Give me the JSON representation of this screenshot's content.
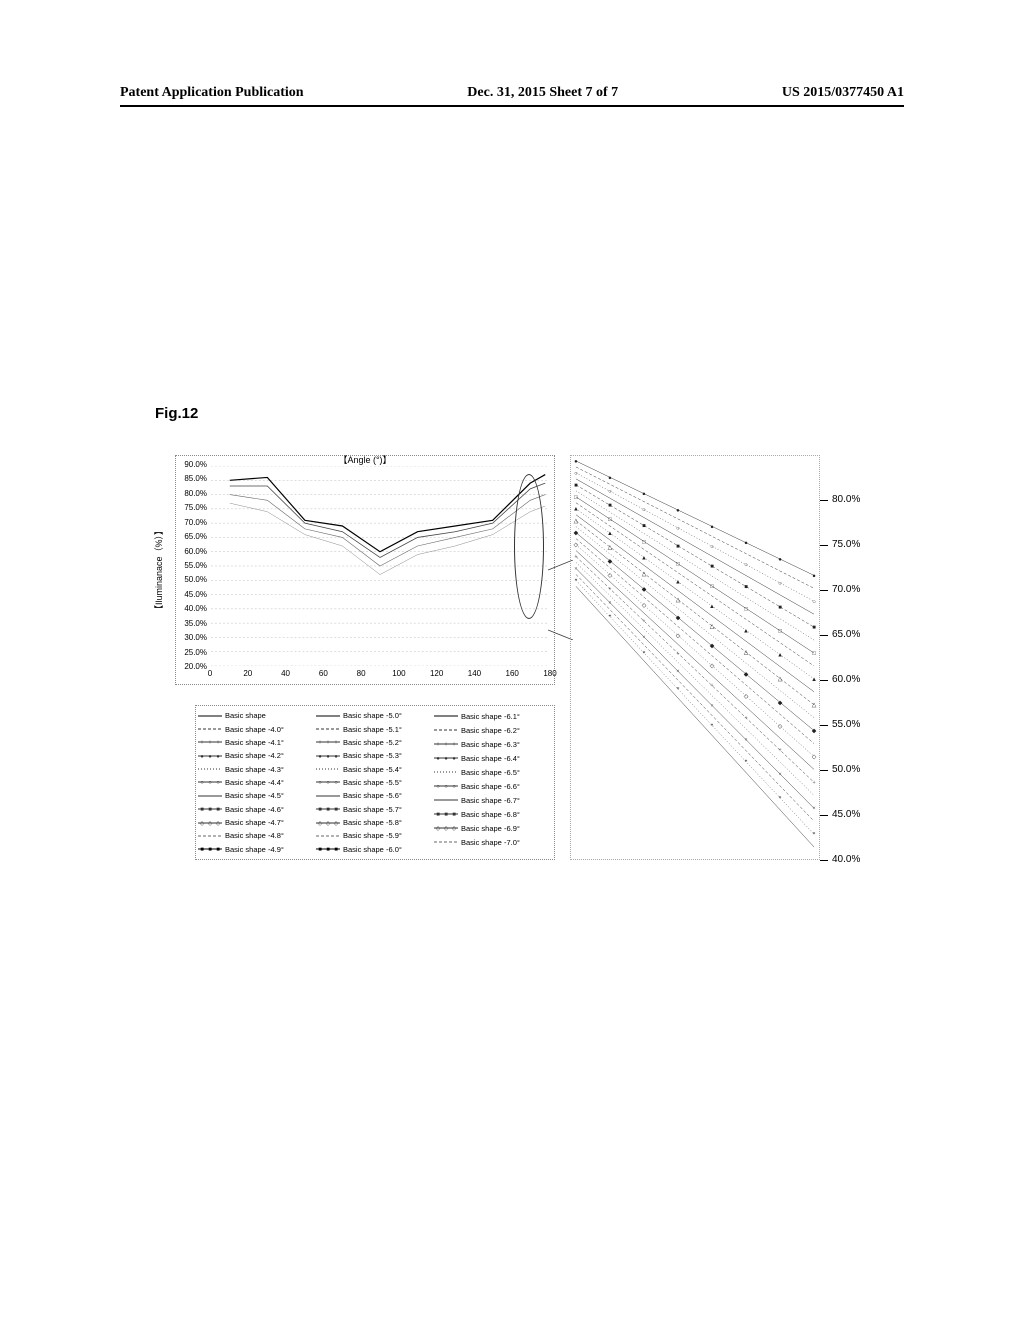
{
  "header": {
    "left": "Patent Application Publication",
    "center": "Dec. 31, 2015  Sheet 7 of 7",
    "right": "US 2015/0377450 A1"
  },
  "figure_label": "Fig.12",
  "chart": {
    "type": "line",
    "title": "【Angle (°)】",
    "ylabel": "【Iluminanace（%）】",
    "xlim": [
      0,
      180
    ],
    "ylim": [
      20,
      90
    ],
    "xtick_step": 20,
    "xticks": [
      0,
      20,
      40,
      60,
      80,
      100,
      120,
      140,
      160,
      180
    ],
    "yticks": [
      "20.0%",
      "25.0%",
      "30.0%",
      "35.0%",
      "40.0%",
      "45.0%",
      "50.0%",
      "55.0%",
      "60.0%",
      "65.0%",
      "70.0%",
      "75.0%",
      "80.0%",
      "85.0%",
      "90.0%"
    ],
    "ytick_values": [
      20,
      25,
      30,
      35,
      40,
      45,
      50,
      55,
      60,
      65,
      70,
      75,
      80,
      85,
      90
    ],
    "grid_color": "#bbbbbb",
    "background_color": "#ffffff",
    "curves": [
      {
        "x": [
          10,
          30,
          50,
          70,
          90,
          110,
          130,
          150,
          170,
          178
        ],
        "y": [
          85,
          86,
          71,
          69,
          60,
          67,
          69,
          71,
          84,
          87
        ],
        "color": "#000",
        "width": 1.2
      },
      {
        "x": [
          10,
          30,
          50,
          70,
          90,
          110,
          130,
          150,
          170,
          178
        ],
        "y": [
          83,
          83,
          70,
          67,
          58,
          65,
          67,
          70,
          82,
          84
        ],
        "color": "#444",
        "width": 0.8
      },
      {
        "x": [
          10,
          30,
          50,
          70,
          90,
          110,
          130,
          150,
          170,
          178
        ],
        "y": [
          80,
          78,
          68,
          65,
          55,
          62,
          65,
          68,
          78,
          80
        ],
        "color": "#666",
        "width": 0.6
      },
      {
        "x": [
          10,
          30,
          50,
          70,
          90,
          110,
          130,
          150,
          170,
          178
        ],
        "y": [
          77,
          74,
          66,
          62,
          52,
          59,
          62,
          66,
          74,
          76
        ],
        "color": "#888",
        "width": 0.5
      }
    ]
  },
  "side_chart": {
    "type": "line",
    "yticks": [
      "40.0%",
      "45.0%",
      "50.0%",
      "55.0%",
      "60.0%",
      "65.0%",
      "70.0%",
      "75.0%",
      "80.0%"
    ],
    "ytick_values": [
      40,
      45,
      50,
      55,
      60,
      65,
      70,
      75,
      80
    ],
    "ylim": [
      40,
      85
    ]
  },
  "legend": {
    "col1": [
      "Basic shape",
      "Basic shape -4.0°",
      "Basic shape -4.1°",
      "Basic shape -4.2°",
      "Basic shape -4.3°",
      "Basic shape -4.4°",
      "Basic shape -4.5°",
      "Basic shape -4.6°",
      "Basic shape -4.7°",
      "Basic shape -4.8°",
      "Basic shape -4.9°"
    ],
    "col2": [
      "Basic shape -5.0°",
      "Basic shape -5.1°",
      "Basic shape -5.2°",
      "Basic shape -5.3°",
      "Basic shape -5.4°",
      "Basic shape -5.5°",
      "Basic shape -5.6°",
      "Basic shape -5.7°",
      "Basic shape -5.8°",
      "Basic shape -5.9°",
      "Basic shape -6.0°"
    ],
    "col3": [
      "Basic shape -6.1°",
      "Basic shape -6.2°",
      "Basic shape -6.3°",
      "Basic shape -6.4°",
      "Basic shape -6.5°",
      "Basic shape -6.6°",
      "Basic shape -6.7°",
      "Basic shape -6.8°",
      "Basic shape -6.9°",
      "Basic shape -7.0°"
    ],
    "swatch_styles": [
      {
        "type": "solid",
        "color": "#000"
      },
      {
        "type": "dashed",
        "color": "#333"
      },
      {
        "type": "dot-marker",
        "color": "#333",
        "marker": "+"
      },
      {
        "type": "dot-marker",
        "color": "#333",
        "marker": "●"
      },
      {
        "type": "dotted",
        "color": "#333"
      },
      {
        "type": "dot-marker",
        "color": "#333",
        "marker": "○"
      },
      {
        "type": "wavy",
        "color": "#333"
      },
      {
        "type": "dot-marker",
        "color": "#333",
        "marker": "■"
      },
      {
        "type": "dot-marker",
        "color": "#333",
        "marker": "◇"
      },
      {
        "type": "dashed",
        "color": "#666"
      },
      {
        "type": "dot-marker",
        "color": "#000",
        "marker": "■"
      }
    ]
  }
}
